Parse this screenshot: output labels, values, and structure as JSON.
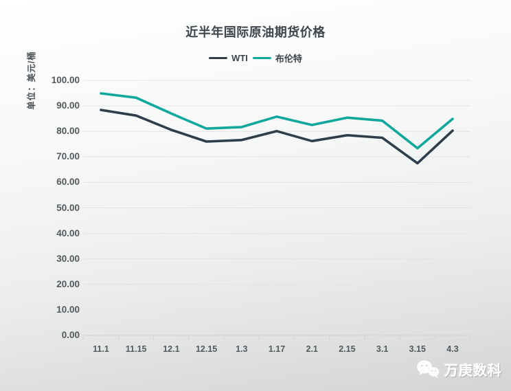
{
  "chart_data": {
    "type": "line",
    "title": "近半年国际原油期货价格",
    "unit_label": "单位：美元/桶",
    "categories": [
      "11.1",
      "11.15",
      "12.1",
      "12.15",
      "1.3",
      "1.17",
      "2.1",
      "2.15",
      "3.1",
      "3.15",
      "4.3"
    ],
    "series": [
      {
        "name": "WTI",
        "color": "#2e3e4a",
        "values": [
          88.4,
          86.2,
          80.6,
          76.0,
          76.6,
          80.1,
          76.2,
          78.5,
          77.5,
          67.5,
          80.3
        ]
      },
      {
        "name": "布伦特",
        "color": "#10a89d",
        "values": [
          94.9,
          93.2,
          87.0,
          81.1,
          81.7,
          85.8,
          82.5,
          85.4,
          84.2,
          73.4,
          84.9
        ]
      }
    ],
    "ylim": [
      0,
      100
    ],
    "y_ticks": [
      "100.00",
      "90.00",
      "80.00",
      "70.00",
      "60.00",
      "50.00",
      "40.00",
      "30.00",
      "20.00",
      "10.00",
      "0.00"
    ],
    "grid": "horizontal-only",
    "legend_position": "top-center",
    "grid_color": "#e2e4e4",
    "axis_color": "#cfd2d2",
    "label_color": "#54585d"
  },
  "watermark": {
    "text": "万庚数科",
    "icon": "wechat-logo-icon"
  }
}
